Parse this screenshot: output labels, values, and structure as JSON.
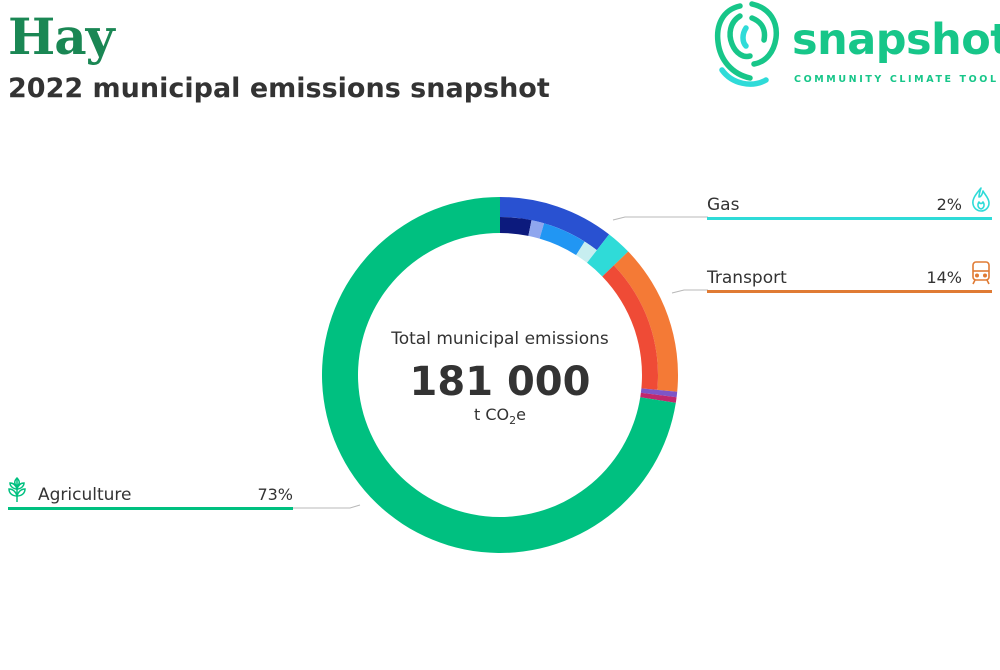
{
  "header": {
    "title": "Hay",
    "subtitle": "2022 municipal emissions snapshot"
  },
  "logo": {
    "wordmark": "snapshot",
    "tagline": "COMMUNITY CLIMATE TOOL",
    "icon": "snapshot-swirl-icon",
    "color": "#17c689"
  },
  "chart_data": {
    "type": "pie",
    "donut": true,
    "center_label": "Total municipal emissions",
    "total_value": "181 000",
    "total_unit_prefix": "t CO",
    "total_unit_subscript": "2",
    "total_unit_suffix": "e",
    "sectors": [
      {
        "id": "electricity",
        "share": 10.5,
        "color": "#2951d1",
        "sub": [
          {
            "share": 3.2,
            "color": "#0c1a7d"
          },
          {
            "share": 1.3,
            "color": "#8fa6ee"
          },
          {
            "share": 4.5,
            "color": "#2196f3"
          },
          {
            "share": 1.5,
            "color": "#c7eef0"
          }
        ]
      },
      {
        "id": "gas",
        "name": "Gas",
        "pct_label": "2%",
        "share": 2.3,
        "color": "#2fdbd8",
        "icon": "flame-icon"
      },
      {
        "id": "transport",
        "name": "Transport",
        "pct_label": "14%",
        "share": 13.7,
        "color": "#f47a36",
        "icon": "train-icon",
        "sub": [
          {
            "share": 13.7,
            "color": "#ef4b36"
          }
        ]
      },
      {
        "id": "waste",
        "share": 0.5,
        "color": "#7e55c7"
      },
      {
        "id": "industrial",
        "share": 0.5,
        "color": "#c0286d"
      },
      {
        "id": "agriculture",
        "name": "Agriculture",
        "pct_label": "73%",
        "share": 72.5,
        "color": "#00c080",
        "icon": "sprout-icon"
      }
    ]
  }
}
